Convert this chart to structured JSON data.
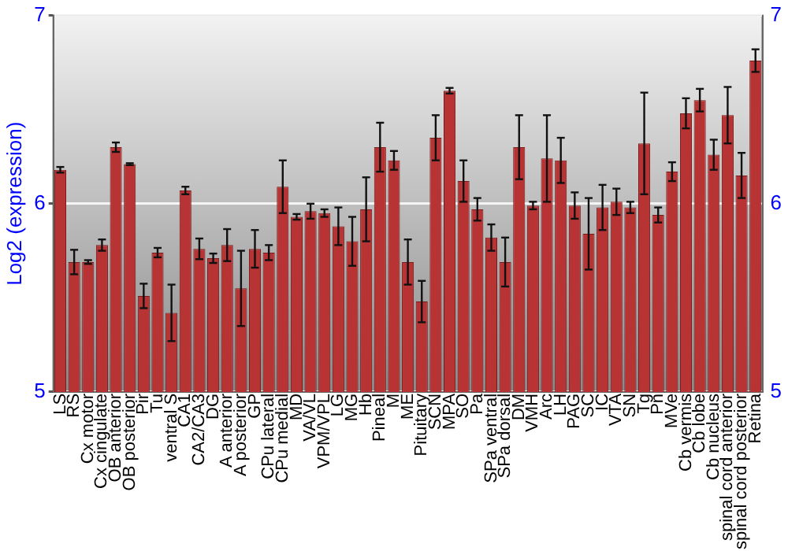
{
  "chart_data": {
    "type": "bar",
    "ylabel": "Log2 (expression)",
    "categories": [
      "LS",
      "RS",
      "Cx motor",
      "Cx cingulate",
      "OB anterior",
      "OB posterior",
      "Pir",
      "Tu",
      "ventral S",
      "CA1",
      "CA2/CA3",
      "DG",
      "A anterior",
      "A posterior",
      "GP",
      "CPu lateral",
      "CPu medial",
      "MD",
      "VA/VL",
      "VPM/VPL",
      "LG",
      "MG",
      "Hb",
      "Pineal",
      "M",
      "ME",
      "Pituitary",
      "SCN",
      "MPA",
      "SO",
      "Pa",
      "SPa ventral",
      "SPa dorsal",
      "DM",
      "VMH",
      "Arc",
      "LH",
      "PAG",
      "SC",
      "IC",
      "VTA",
      "SN",
      "Tg",
      "Pn",
      "MVe",
      "Cb vermis",
      "Cb lobe",
      "Cb nucleus",
      "spinal cord anterior",
      "spinal cord posterior",
      "Retina"
    ],
    "values": [
      6.18,
      5.69,
      5.69,
      5.78,
      6.3,
      6.21,
      5.51,
      5.74,
      5.42,
      6.07,
      5.76,
      5.71,
      5.78,
      5.55,
      5.76,
      5.74,
      6.09,
      5.93,
      5.96,
      5.95,
      5.88,
      5.8,
      5.97,
      6.3,
      6.23,
      5.69,
      5.48,
      6.35,
      6.6,
      6.12,
      5.97,
      5.82,
      5.69,
      6.3,
      5.99,
      6.24,
      6.23,
      5.99,
      5.84,
      5.98,
      6.01,
      5.98,
      6.32,
      5.94,
      6.17,
      6.48,
      6.55,
      6.26,
      6.47,
      6.15,
      6.76
    ],
    "errors": [
      0.015,
      0.065,
      0.01,
      0.03,
      0.025,
      0.005,
      0.065,
      0.025,
      0.15,
      0.02,
      0.055,
      0.025,
      0.085,
      0.2,
      0.1,
      0.04,
      0.14,
      0.015,
      0.04,
      0.02,
      0.1,
      0.13,
      0.17,
      0.13,
      0.05,
      0.12,
      0.11,
      0.12,
      0.015,
      0.11,
      0.06,
      0.07,
      0.13,
      0.17,
      0.02,
      0.23,
      0.12,
      0.07,
      0.19,
      0.12,
      0.07,
      0.03,
      0.27,
      0.04,
      0.05,
      0.08,
      0.06,
      0.08,
      0.15,
      0.12,
      0.06
    ],
    "color": "#b83434",
    "ylim": [
      5,
      7
    ],
    "yticks": [
      5,
      6,
      7
    ],
    "y2lim": [
      5,
      7
    ],
    "y2ticks": [
      5,
      6,
      7
    ],
    "grid": "y",
    "legend": false
  }
}
